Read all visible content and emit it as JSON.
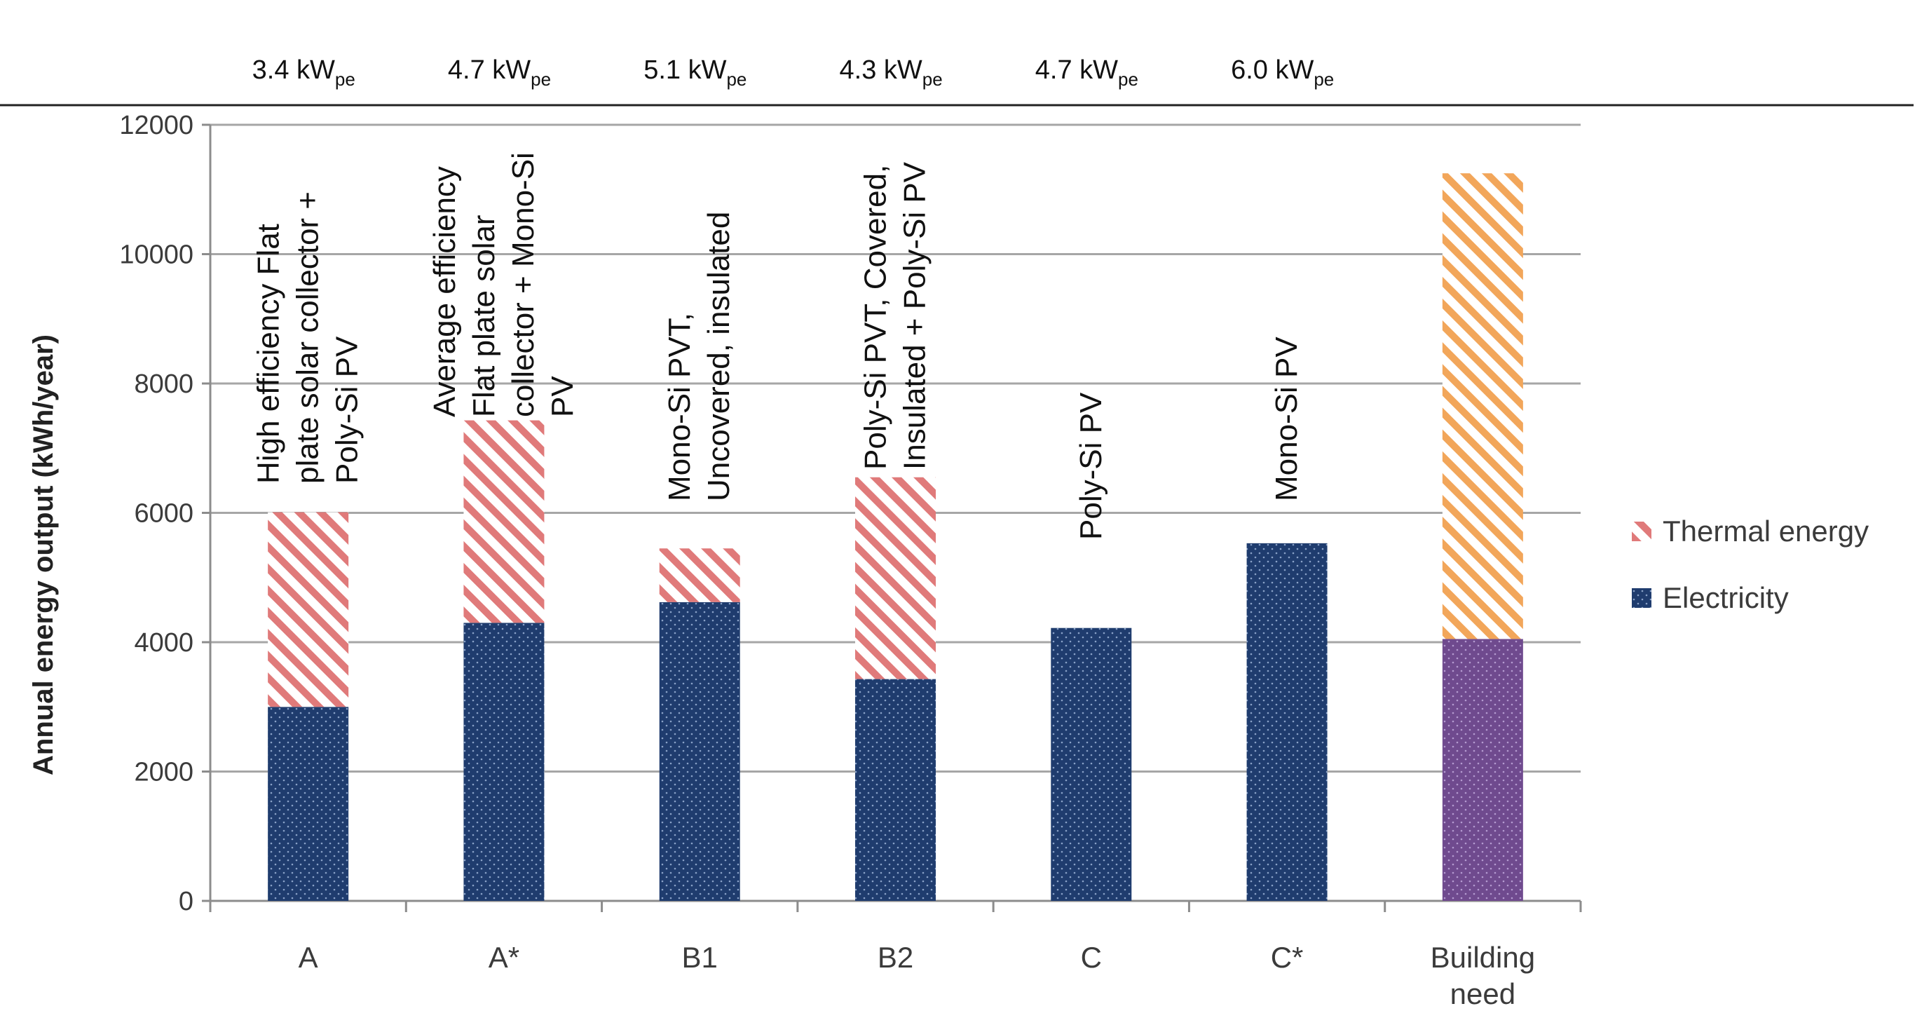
{
  "chart_data": {
    "type": "bar",
    "stacked": true,
    "title": "",
    "xlabel": "",
    "ylabel": "Annual energy output (kWh/year)",
    "ylim": [
      0,
      12000
    ],
    "yticks": [
      0,
      2000,
      4000,
      6000,
      8000,
      10000,
      12000
    ],
    "grid": true,
    "legend_position": "right",
    "categories": [
      "A",
      "A*",
      "B1",
      "B2",
      "C",
      "C*",
      "Building need"
    ],
    "series": [
      {
        "name": "Electricity",
        "color": "#1f3c6e",
        "values": [
          3000,
          4300,
          4620,
          3430,
          4220,
          5530,
          4050
        ]
      },
      {
        "name": "Thermal energy",
        "color": "#e07a7a",
        "values": [
          3010,
          3130,
          830,
          3120,
          0,
          0,
          7200
        ]
      }
    ],
    "building_need_colors": {
      "electricity": "#6f4a8e",
      "thermal": "#f2a65a"
    },
    "peak_power_labels": [
      {
        "value": "3.4 kW",
        "sub": "pe"
      },
      {
        "value": "4.7 kW",
        "sub": "pe"
      },
      {
        "value": "5.1 kW",
        "sub": "pe"
      },
      {
        "value": "4.3 kW",
        "sub": "pe"
      },
      {
        "value": "4.7 kW",
        "sub": "pe"
      },
      {
        "value": "6.0 kW",
        "sub": "pe"
      }
    ],
    "annotations": [
      [
        "High efficiency Flat",
        "plate solar collector +",
        "Poly-Si PV"
      ],
      [
        "Average efficiency",
        "Flat plate solar",
        "collector + Mono-Si",
        "PV"
      ],
      [
        "Mono-Si PVT,",
        "Uncovered, insulated"
      ],
      [
        "Poly-Si PVT, Covered,",
        "Insulated + Poly-Si PV"
      ],
      [
        "Poly-Si PV"
      ],
      [
        "Mono-Si PV"
      ]
    ]
  }
}
